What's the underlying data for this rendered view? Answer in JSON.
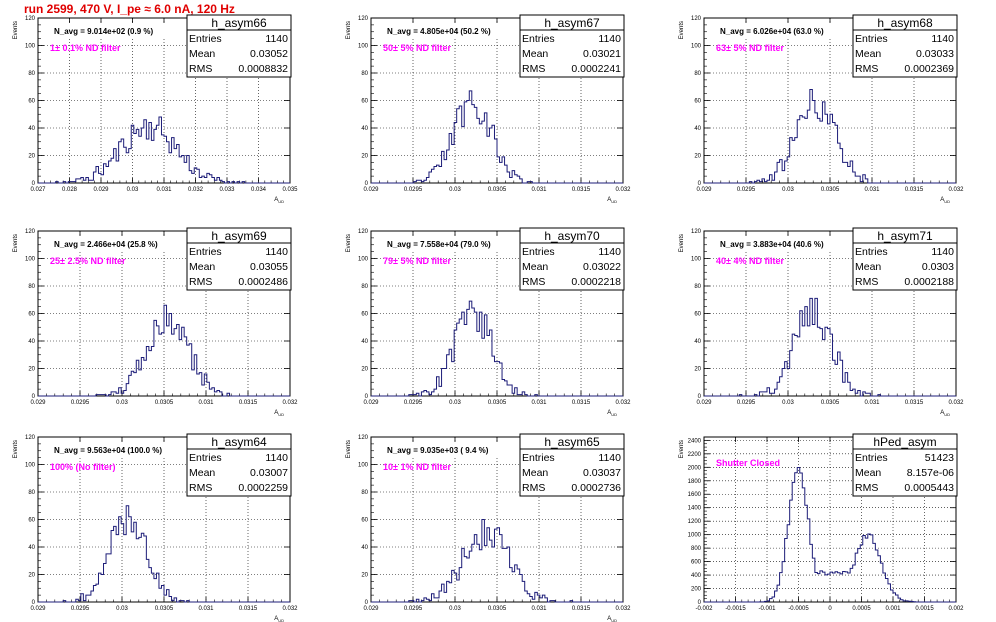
{
  "page": {
    "title": "run 2599,   470 V, I_pe ≈ 6.0 nA, 120 Hz"
  },
  "stat_labels": {
    "entries": "Entries",
    "mean": "Mean",
    "rms": "RMS"
  },
  "colors": {
    "histogram": "#1c1c78",
    "title": "#e00000",
    "annotation": "#ff00ff"
  },
  "chart_data": [
    {
      "type": "bar",
      "name": "h_asym66",
      "navg": "N_avg = 9.014e+02 (0.9 %)",
      "filter": "1± 0.1% ND filter",
      "entries": "1140",
      "mean": "0.03052",
      "rms": "0.0008832",
      "ylabel": "Events",
      "xlabel": "A_UD",
      "xlim": [
        0.027,
        0.035
      ],
      "ylim": [
        0,
        120
      ],
      "xticks": [
        0.027,
        0.028,
        0.029,
        0.03,
        0.031,
        0.032,
        0.033,
        0.034,
        0.035
      ],
      "xtick_labels": [
        "0.027",
        "0.028",
        "0.029",
        "0.03",
        "0.031",
        "0.032",
        "0.033",
        "0.034",
        "0.035"
      ],
      "yticks": [
        0,
        20,
        40,
        60,
        80,
        100,
        120
      ],
      "ytick_labels": [
        "0",
        "20",
        "40",
        "60",
        "80",
        "100",
        "120"
      ],
      "grid": true,
      "hist": {
        "mean": 0.03052,
        "sigma": 0.00088,
        "entries": 1140,
        "nbins": 100,
        "seed": 11
      }
    },
    {
      "type": "bar",
      "name": "h_asym67",
      "navg": "N_avg = 4.805e+04 (50.2 %)",
      "filter": "50± 5% ND filter",
      "entries": "1140",
      "mean": "0.03021",
      "rms": "0.0002241",
      "ylabel": "Events",
      "xlabel": "A_UD",
      "xlim": [
        0.029,
        0.032
      ],
      "ylim": [
        0,
        120
      ],
      "xticks": [
        0.029,
        0.0295,
        0.03,
        0.0305,
        0.031,
        0.0315,
        0.032
      ],
      "xtick_labels": [
        "0.029",
        "0.0295",
        "0.03",
        "0.0305",
        "0.031",
        "0.0315",
        "0.032"
      ],
      "yticks": [
        0,
        20,
        40,
        60,
        80,
        100,
        120
      ],
      "ytick_labels": [
        "0",
        "20",
        "40",
        "60",
        "80",
        "100",
        "120"
      ],
      "grid": true,
      "hist": {
        "mean": 0.03021,
        "sigma": 0.000224,
        "entries": 1140,
        "nbins": 100,
        "seed": 23
      }
    },
    {
      "type": "bar",
      "name": "h_asym68",
      "navg": "N_avg = 6.026e+04 (63.0 %)",
      "filter": "63± 5% ND filter",
      "entries": "1140",
      "mean": "0.03033",
      "rms": "0.0002369",
      "ylabel": "Events",
      "xlabel": "A_UD",
      "xlim": [
        0.029,
        0.032
      ],
      "ylim": [
        0,
        120
      ],
      "xticks": [
        0.029,
        0.0295,
        0.03,
        0.0305,
        0.031,
        0.0315,
        0.032
      ],
      "xtick_labels": [
        "0.029",
        "0.0295",
        "0.03",
        "0.0305",
        "0.031",
        "0.0315",
        "0.032"
      ],
      "yticks": [
        0,
        20,
        40,
        60,
        80,
        100,
        120
      ],
      "ytick_labels": [
        "0",
        "20",
        "40",
        "60",
        "80",
        "100",
        "120"
      ],
      "grid": true,
      "hist": {
        "mean": 0.03033,
        "sigma": 0.000237,
        "entries": 1140,
        "nbins": 100,
        "seed": 37
      }
    },
    {
      "type": "bar",
      "name": "h_asym69",
      "navg": "N_avg = 2.466e+04 (25.8 %)",
      "filter": "25± 2.5% ND filter",
      "entries": "1140",
      "mean": "0.03055",
      "rms": "0.0002486",
      "ylabel": "Events",
      "xlabel": "A_UD",
      "xlim": [
        0.029,
        0.032
      ],
      "ylim": [
        0,
        120
      ],
      "xticks": [
        0.029,
        0.0295,
        0.03,
        0.0305,
        0.031,
        0.0315,
        0.032
      ],
      "xtick_labels": [
        "0.029",
        "0.0295",
        "0.03",
        "0.0305",
        "0.031",
        "0.0315",
        "0.032"
      ],
      "yticks": [
        0,
        20,
        40,
        60,
        80,
        100,
        120
      ],
      "ytick_labels": [
        "0",
        "20",
        "40",
        "60",
        "80",
        "100",
        "120"
      ],
      "grid": true,
      "hist": {
        "mean": 0.03055,
        "sigma": 0.000249,
        "entries": 1140,
        "nbins": 100,
        "seed": 41
      }
    },
    {
      "type": "bar",
      "name": "h_asym70",
      "navg": "N_avg = 7.558e+04 (79.0 %)",
      "filter": "79± 5% ND filter",
      "entries": "1140",
      "mean": "0.03022",
      "rms": "0.0002218",
      "ylabel": "Events",
      "xlabel": "A_UD",
      "xlim": [
        0.029,
        0.032
      ],
      "ylim": [
        0,
        120
      ],
      "xticks": [
        0.029,
        0.0295,
        0.03,
        0.0305,
        0.031,
        0.0315,
        0.032
      ],
      "xtick_labels": [
        "0.029",
        "0.0295",
        "0.03",
        "0.0305",
        "0.031",
        "0.0315",
        "0.032"
      ],
      "yticks": [
        0,
        20,
        40,
        60,
        80,
        100,
        120
      ],
      "ytick_labels": [
        "0",
        "20",
        "40",
        "60",
        "80",
        "100",
        "120"
      ],
      "grid": true,
      "hist": {
        "mean": 0.03022,
        "sigma": 0.000222,
        "entries": 1140,
        "nbins": 100,
        "seed": 53
      }
    },
    {
      "type": "bar",
      "name": "h_asym71",
      "navg": "N_avg = 3.883e+04 (40.6 %)",
      "filter": "40± 4% ND filter",
      "entries": "1140",
      "mean": "0.0303",
      "rms": "0.0002188",
      "ylabel": "Events",
      "xlabel": "A_UD",
      "xlim": [
        0.029,
        0.032
      ],
      "ylim": [
        0,
        120
      ],
      "xticks": [
        0.029,
        0.0295,
        0.03,
        0.0305,
        0.031,
        0.0315,
        0.032
      ],
      "xtick_labels": [
        "0.029",
        "0.0295",
        "0.03",
        "0.0305",
        "0.031",
        "0.0315",
        "0.032"
      ],
      "yticks": [
        0,
        20,
        40,
        60,
        80,
        100,
        120
      ],
      "ytick_labels": [
        "0",
        "20",
        "40",
        "60",
        "80",
        "100",
        "120"
      ],
      "grid": true,
      "hist": {
        "mean": 0.0303,
        "sigma": 0.000219,
        "entries": 1140,
        "nbins": 100,
        "seed": 67
      }
    },
    {
      "type": "bar",
      "name": "h_asym64",
      "navg": "N_avg = 9.563e+04 (100.0 %)",
      "filter": "100% (No filter)",
      "entries": "1140",
      "mean": "0.03007",
      "rms": "0.0002259",
      "ylabel": "Events",
      "xlabel": "A_UD",
      "xlim": [
        0.029,
        0.032
      ],
      "ylim": [
        0,
        120
      ],
      "xticks": [
        0.029,
        0.0295,
        0.03,
        0.0305,
        0.031,
        0.0315,
        0.032
      ],
      "xtick_labels": [
        "0.029",
        "0.0295",
        "0.03",
        "0.0305",
        "0.031",
        "0.0315",
        "0.032"
      ],
      "yticks": [
        0,
        20,
        40,
        60,
        80,
        100,
        120
      ],
      "ytick_labels": [
        "0",
        "20",
        "40",
        "60",
        "80",
        "100",
        "120"
      ],
      "grid": true,
      "hist": {
        "mean": 0.03007,
        "sigma": 0.000226,
        "entries": 1140,
        "nbins": 100,
        "seed": 71
      }
    },
    {
      "type": "bar",
      "name": "h_asym65",
      "navg": "N_avg = 9.035e+03 ( 9.4 %)",
      "filter": "10± 1% ND filter",
      "entries": "1140",
      "mean": "0.03037",
      "rms": "0.0002736",
      "ylabel": "Events",
      "xlabel": "A_UD",
      "xlim": [
        0.029,
        0.032
      ],
      "ylim": [
        0,
        120
      ],
      "xticks": [
        0.029,
        0.0295,
        0.03,
        0.0305,
        0.031,
        0.0315,
        0.032
      ],
      "xtick_labels": [
        "0.029",
        "0.0295",
        "0.03",
        "0.0305",
        "0.031",
        "0.0315",
        "0.032"
      ],
      "yticks": [
        0,
        20,
        40,
        60,
        80,
        100,
        120
      ],
      "ytick_labels": [
        "0",
        "20",
        "40",
        "60",
        "80",
        "100",
        "120"
      ],
      "grid": true,
      "hist": {
        "mean": 0.03037,
        "sigma": 0.000274,
        "entries": 1140,
        "nbins": 100,
        "seed": 83
      }
    },
    {
      "type": "bar",
      "name": "hPed_asym",
      "navg": "",
      "filter": "Shutter Closed",
      "entries": "51423",
      "mean": "8.157e-06",
      "rms": "0.0005443",
      "ylabel": "Events",
      "xlabel": "",
      "xlim": [
        -0.002,
        0.002
      ],
      "ylim": [
        0,
        2450
      ],
      "xticks": [
        -0.002,
        -0.0015,
        -0.001,
        -0.0005,
        0,
        0.0005,
        0.001,
        0.0015,
        0.002
      ],
      "xtick_labels": [
        "-0.002",
        "-0.0015",
        "-0.001",
        "-0.0005",
        "0",
        "0.0005",
        "0.001",
        "0.0015",
        "0.002"
      ],
      "yticks": [
        0,
        200,
        400,
        600,
        800,
        1000,
        1200,
        1400,
        1600,
        1800,
        2000,
        2200,
        2400
      ],
      "ytick_labels": [
        "0",
        "200",
        "400",
        "600",
        "800",
        "1000",
        "1200",
        "1400",
        "1600",
        "1800",
        "2000",
        "2200",
        "2400"
      ],
      "grid": true,
      "hist": {
        "nbins": 100,
        "seed": 97,
        "baseline": 430,
        "baseline_width": 0.0005,
        "peaks": [
          {
            "mean": -0.0005,
            "sigma": 0.00016,
            "height": 1950
          },
          {
            "mean": 0.0006,
            "sigma": 0.00021,
            "height": 1000
          }
        ]
      }
    }
  ]
}
